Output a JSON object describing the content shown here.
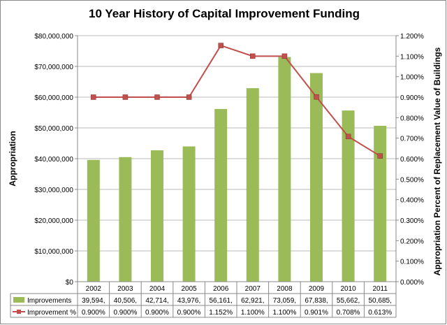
{
  "chart_data": {
    "type": "bar+line",
    "title": "10 Year History of Capital Improvement Funding",
    "ylabel_left": "Appropriation",
    "ylabel_right": "Appropriation Percent of Replacement Value of Buildings",
    "categories": [
      "2002",
      "2003",
      "2004",
      "2005",
      "2006",
      "2007",
      "2008",
      "2009",
      "2010",
      "2011"
    ],
    "ylim_left": [
      0,
      80000000
    ],
    "ylim_right": [
      0,
      0.012
    ],
    "yticks_left": [
      "$0",
      "$10,000,000",
      "$20,000,000",
      "$30,000,000",
      "$40,000,000",
      "$50,000,000",
      "$60,000,000",
      "$70,000,000",
      "$80,000,000"
    ],
    "yticks_right": [
      "0.000%",
      "0.100%",
      "0.200%",
      "0.300%",
      "0.400%",
      "0.500%",
      "0.600%",
      "0.700%",
      "0.800%",
      "0.900%",
      "1.000%",
      "1.100%",
      "1.200%"
    ],
    "grid": true,
    "legend": "data-table",
    "series": [
      {
        "name": "Improvements",
        "kind": "bar",
        "axis": "left",
        "color": "#9BBB59",
        "values": [
          39594000,
          40506000,
          42714000,
          43976000,
          56161000,
          62921000,
          73059000,
          67838000,
          55662000,
          50685000
        ],
        "table_labels": [
          "39,594,",
          "40,506,",
          "42,714,",
          "43,976,",
          "56,161,",
          "62,921,",
          "73,059,",
          "67,838,",
          "55,662,",
          "50,685,"
        ]
      },
      {
        "name": "Improvement %",
        "kind": "line",
        "axis": "right",
        "color": "#C0504D",
        "values": [
          0.009,
          0.009,
          0.009,
          0.009,
          0.01152,
          0.011,
          0.011,
          0.00901,
          0.00708,
          0.00613
        ],
        "table_labels": [
          "0.900%",
          "0.900%",
          "0.900%",
          "0.900%",
          "1.152%",
          "1.100%",
          "1.100%",
          "0.901%",
          "0.708%",
          "0.613%"
        ]
      }
    ]
  }
}
